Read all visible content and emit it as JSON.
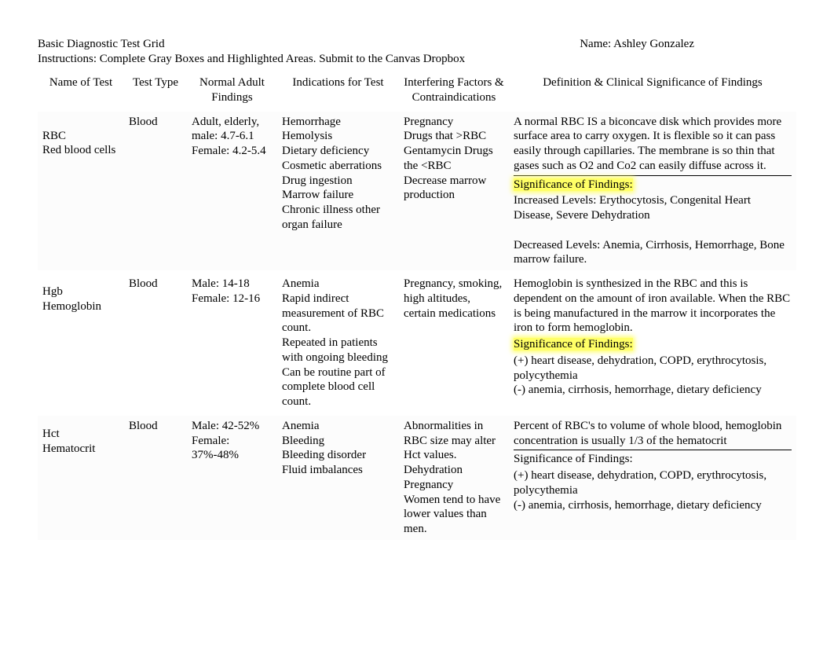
{
  "header": {
    "title": "Basic Diagnostic Test Grid",
    "name_label": "Name: ",
    "student_name": "Ashley Gonzalez",
    "instructions": "Instructions: Complete Gray Boxes and Highlighted Areas. Submit to the Canvas Dropbox"
  },
  "columns": [
    "Name of Test",
    "Test Type",
    "Normal Adult Findings",
    "Indications for Test",
    "Interfering Factors & Contraindications",
    "Definition & Clinical Significance of Findings"
  ],
  "rows": [
    {
      "name_line1": "RBC",
      "name_line2": "Red blood cells",
      "test_type": "Blood",
      "normal": "Adult, elderly, male: 4.7-6.1\nFemale: 4.2-5.4",
      "indications": "Hemorrhage\nHemolysis\nDietary deficiency\nCosmetic aberrations\nDrug ingestion\nMarrow failure\nChronic illness other organ failure",
      "interfering": "Pregnancy\nDrugs that >RBC\nGentamycin Drugs the <RBC\nDecrease marrow production",
      "def_intro": "A normal RBC IS a biconcave disk which provides more surface area to carry oxygen. It is flexible so it can pass easily through capillaries. The membrane is so thin that gases such as O2 and Co2 can easily diffuse across it.",
      "sig_label": "Significance of Findings:",
      "sig_body": "Increased Levels: Erythocytosis, Congenital Heart Disease, Severe Dehydration\n\nDecreased Levels: Anemia, Cirrhosis, Hemorrhage, Bone marrow failure.",
      "sig_highlight": true,
      "has_rule": true
    },
    {
      "name_line1": "Hgb",
      "name_line2": "Hemoglobin",
      "test_type": "Blood",
      "normal": "Male: 14-18\nFemale: 12-16",
      "indications": "Anemia\nRapid indirect measurement of RBC count.\nRepeated in patients with ongoing bleeding\nCan be routine part of complete blood cell count.",
      "interfering": "Pregnancy, smoking, high altitudes, certain medications",
      "def_intro": "Hemoglobin is synthesized in the RBC and this is dependent on the amount of iron available. When the RBC is being manufactured in the marrow it incorporates the iron to form hemoglobin.",
      "sig_label": "Significance of Findings:",
      "sig_body": "(+) heart disease, dehydration, COPD, erythrocytosis, polycythemia\n(-) anemia, cirrhosis, hemorrhage, dietary deficiency",
      "sig_highlight": true,
      "has_rule": false
    },
    {
      "name_line1": "Hct",
      "name_line2": "Hematocrit",
      "test_type": "Blood",
      "normal": "Male: 42-52%\nFemale: 37%-48%",
      "indications": "Anemia\nBleeding\nBleeding disorder\nFluid imbalances",
      "interfering": "Abnormalities in RBC size may alter Hct values.\nDehydration\nPregnancy\nWomen tend to have lower values than men.",
      "def_intro": "Percent of RBC's to volume of whole blood, hemoglobin concentration is usually 1/3 of the hematocrit",
      "sig_label": "Significance of Findings:",
      "sig_body": "(+) heart disease, dehydration, COPD, erythrocytosis, polycythemia\n(-) anemia, cirrhosis, hemorrhage, dietary deficiency",
      "sig_highlight": false,
      "has_rule": true
    }
  ]
}
